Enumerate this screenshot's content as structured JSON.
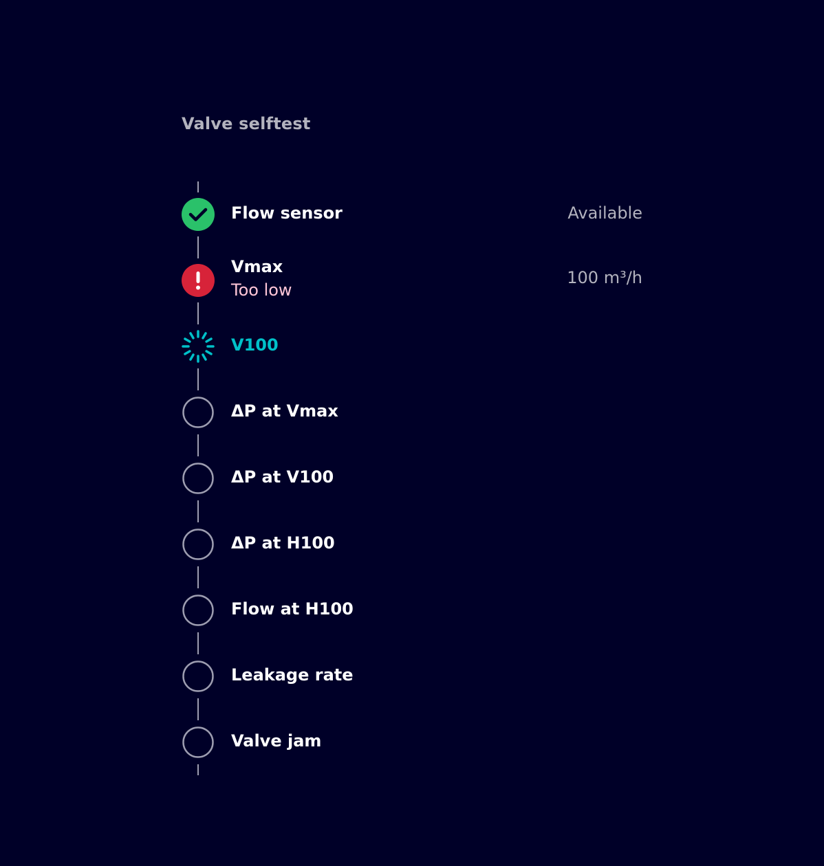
{
  "title": "Valve selftest",
  "colors": {
    "success": "#2ac16a",
    "error": "#d72339",
    "running": "#00c1c9",
    "pending": "#9d9db0",
    "error_text": "#ffc6d8"
  },
  "steps": [
    {
      "label": "Flow sensor",
      "status": "success",
      "icon": "check-icon",
      "value": "Available"
    },
    {
      "label": "Vmax",
      "status": "error",
      "icon": "exclamation-icon",
      "sub": "Too low",
      "value": "100 m³/h"
    },
    {
      "label": "V100",
      "status": "running",
      "icon": "spinner-icon"
    },
    {
      "label": "ΔP at Vmax",
      "status": "pending",
      "icon": "circle-icon"
    },
    {
      "label": "ΔP at V100",
      "status": "pending",
      "icon": "circle-icon"
    },
    {
      "label": "ΔP at H100",
      "status": "pending",
      "icon": "circle-icon"
    },
    {
      "label": "Flow at H100",
      "status": "pending",
      "icon": "circle-icon"
    },
    {
      "label": "Leakage rate",
      "status": "pending",
      "icon": "circle-icon"
    },
    {
      "label": "Valve jam",
      "status": "pending",
      "icon": "circle-icon"
    }
  ]
}
